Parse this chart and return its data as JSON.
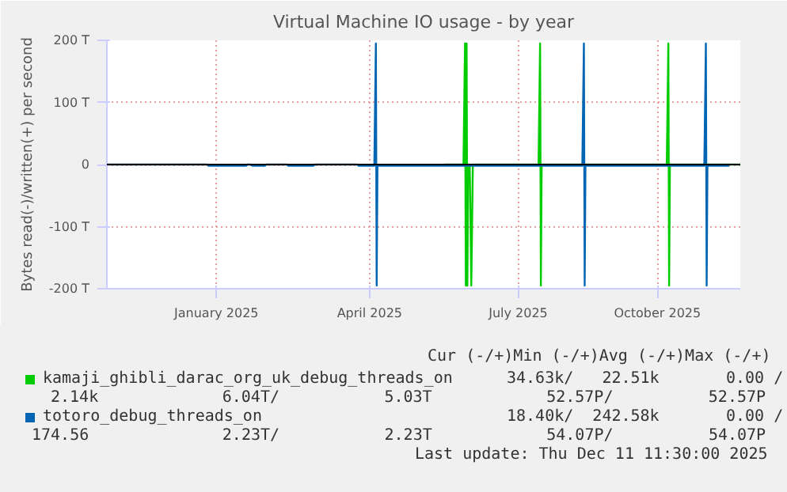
{
  "chart_data": {
    "type": "line",
    "title": "Virtual Machine IO usage - by year",
    "ylabel": "Bytes read(-)/written(+) per second",
    "xlim": [
      "2024-11-01",
      "2025-12-11"
    ],
    "ylim": [
      -200,
      200
    ],
    "xticks": [
      {
        "value": "2025-01-10",
        "label": "January 2025"
      },
      {
        "value": "2025-04-18",
        "label": "April 2025"
      },
      {
        "value": "2025-07-22",
        "label": "July 2025"
      },
      {
        "value": "2025-10-19",
        "label": "October 2025"
      }
    ],
    "yticks": [
      {
        "value": -200,
        "label": "-200 T"
      },
      {
        "value": -100,
        "label": "-100 T"
      },
      0,
      {
        "value": 100,
        "label": "100 T"
      },
      {
        "value": 200,
        "label": "200 T"
      }
    ],
    "grid": true,
    "legend": "bottom",
    "marker": "none",
    "line_style": "solid",
    "ref_lines": [
      {
        "axis": "y",
        "value": 0,
        "color": "#000000"
      }
    ],
    "series": [
      {
        "name": "kamaji_ghibli_darac_org_uk_debug_threads_on",
        "color": "#00cc00",
        "x": [
          "2025-06-05",
          "2025-06-17",
          "2025-06-18",
          "2025-06-18T12:00",
          "2025-06-19",
          "2025-06-19T12:00",
          "2025-06-20",
          "2025-06-21",
          "2025-06-22",
          "2025-06-23",
          "2025-08-04",
          "2025-08-05",
          "2025-08-05T12:00",
          "2025-08-06",
          "2025-10-25",
          "2025-10-26",
          "2025-10-26T12:00",
          "2025-10-27",
          "2025-12-11"
        ],
        "values": [
          0,
          0,
          195,
          -195,
          195,
          -195,
          0,
          0,
          -195,
          0,
          0,
          195,
          -195,
          0,
          0,
          195,
          -195,
          0,
          0
        ]
      },
      {
        "name": "totoro_debug_threads_on",
        "color": "#0066b3",
        "x": [
          "2024-11-01",
          "2025-01-04",
          "2025-01-05",
          "2025-01-29",
          "2025-01-30",
          "2025-02-01",
          "2025-02-02",
          "2025-02-10",
          "2025-02-11",
          "2025-02-24",
          "2025-02-25",
          "2025-03-13",
          "2025-03-14",
          "2025-04-10",
          "2025-04-11",
          "2025-04-21",
          "2025-04-22",
          "2025-04-22T12:00",
          "2025-04-23",
          "2025-09-01",
          "2025-09-02",
          "2025-09-02T12:00",
          "2025-09-03",
          "2025-11-18",
          "2025-11-19",
          "2025-11-19T12:00",
          "2025-11-20",
          "2025-12-04"
        ],
        "values": [
          0,
          0,
          -2,
          -2,
          0,
          0,
          -2,
          -2,
          0,
          0,
          -2,
          -2,
          0,
          0,
          -2,
          -2,
          195,
          -195,
          -2,
          -2,
          195,
          -195,
          -2,
          -2,
          195,
          -195,
          -2,
          -2
        ]
      }
    ],
    "annotations": [
      "Cur (-/+)Min (-/+)Avg (-/+)Max (-/+)",
      "34.63k/   22.51k       0.00 /",
      "2.14k             6.04T/           5.03T            52.57P/          52.57P",
      "18.40k/  242.58k       0.00 /",
      "174.56              2.23T/           2.23T            54.07P/          54.07P",
      "Last update: Thu Dec 11 11:30:00 2025"
    ]
  }
}
